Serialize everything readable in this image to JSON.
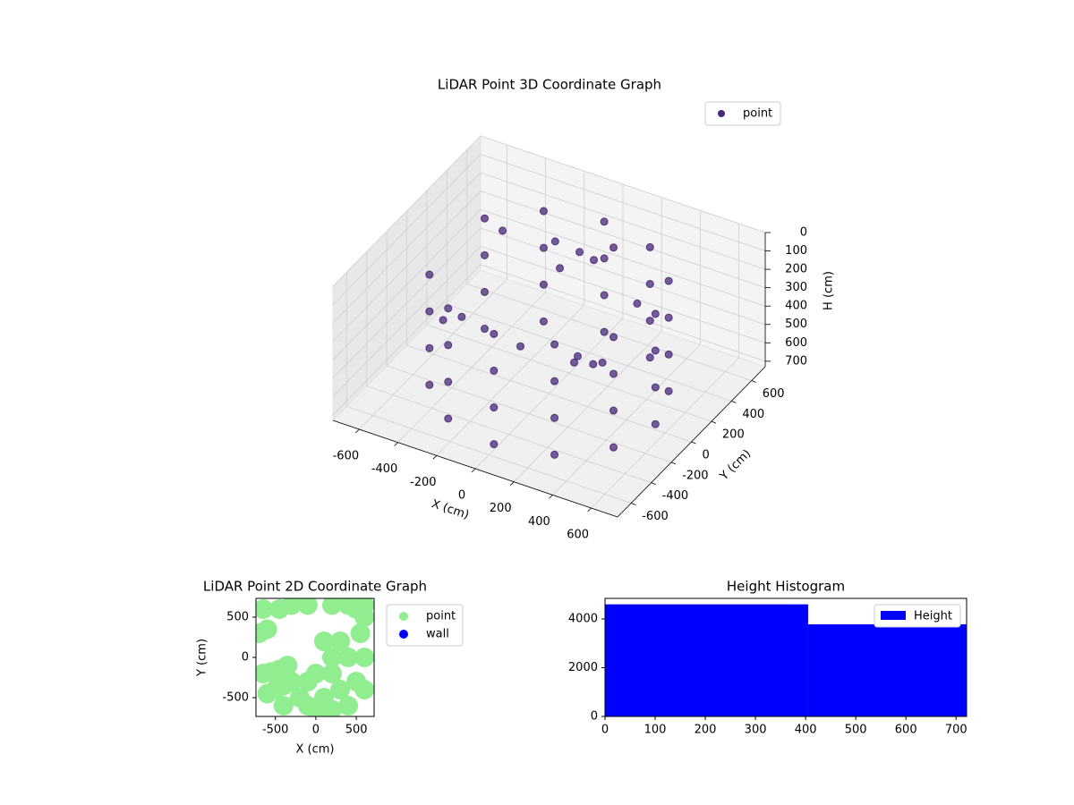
{
  "chart_data": [
    {
      "type": "scatter3d",
      "title": "LiDAR Point 3D Coordinate Graph",
      "xlabel": "X (cm)",
      "ylabel": "Y (cm)",
      "zlabel": "H (cm)",
      "xlim": [
        -736,
        736
      ],
      "ylim": [
        -736,
        736
      ],
      "zlim": [
        730,
        0
      ],
      "xticks": [
        -600,
        -400,
        -200,
        0,
        200,
        400,
        600
      ],
      "yticks": [
        -600,
        -400,
        -200,
        0,
        200,
        400,
        600
      ],
      "zticks": [
        0,
        100,
        200,
        300,
        400,
        500,
        600,
        700
      ],
      "grid": true,
      "legend": "upper right",
      "series": [
        {
          "name": "point",
          "color": "#482878",
          "x": [
            -476,
            -476,
            -476,
            -476,
            -275,
            -275,
            -275,
            -275,
            0,
            0,
            0,
            0,
            275,
            275,
            275,
            275,
            476,
            476,
            476,
            476,
            550,
            550,
            550,
            550,
            476,
            476,
            476,
            476,
            275,
            275,
            275,
            275,
            0,
            0,
            0,
            0,
            -275,
            -275,
            -275,
            -275,
            -476,
            -476,
            -476,
            -476,
            -150,
            -50,
            50,
            100,
            -100,
            200,
            250,
            150,
            0,
            -200,
            -500,
            -400,
            -600,
            300
          ],
          "y": [
            -275,
            -275,
            -275,
            -275,
            -476,
            -476,
            -476,
            -476,
            -550,
            -550,
            -550,
            -550,
            -476,
            -476,
            -476,
            -476,
            -275,
            -275,
            -275,
            -275,
            0,
            0,
            0,
            0,
            275,
            275,
            275,
            275,
            476,
            476,
            476,
            476,
            550,
            550,
            550,
            550,
            476,
            476,
            476,
            476,
            275,
            275,
            275,
            275,
            350,
            400,
            350,
            450,
            300,
            -100,
            50,
            150,
            250,
            100,
            500,
            -100,
            100,
            300
          ],
          "z": [
            100,
            300,
            500,
            700,
            100,
            300,
            500,
            700,
            100,
            300,
            500,
            700,
            100,
            300,
            500,
            700,
            100,
            300,
            500,
            700,
            100,
            300,
            500,
            700,
            100,
            300,
            500,
            700,
            100,
            300,
            500,
            700,
            100,
            300,
            500,
            700,
            100,
            300,
            500,
            700,
            100,
            300,
            500,
            700,
            150,
            200,
            180,
            150,
            250,
            400,
            500,
            600,
            700,
            600,
            300,
            400,
            600,
            300
          ]
        }
      ]
    },
    {
      "type": "scatter",
      "title": "LiDAR Point 2D Coordinate Graph",
      "xlabel": "X (cm)",
      "ylabel": "Y (cm)",
      "xlim": [
        -740,
        720
      ],
      "ylim": [
        -733,
        733
      ],
      "xticks": [
        -500,
        0,
        500
      ],
      "yticks": [
        -500,
        0,
        500
      ],
      "legend": "outside right",
      "series": [
        {
          "name": "point",
          "color": "#90ee90",
          "x": [
            -650,
            -600,
            -650,
            -550,
            -450,
            -350,
            -600,
            -500,
            -400,
            -300,
            -200,
            -100,
            -400,
            0,
            100,
            200,
            300,
            400,
            500,
            600,
            600,
            550,
            600,
            500,
            400,
            200,
            -100,
            -300,
            -450,
            100,
            200,
            300,
            400,
            0,
            -100,
            200,
            600,
            -700
          ],
          "y": [
            600,
            350,
            -200,
            -180,
            -150,
            -100,
            -450,
            -400,
            -350,
            -300,
            -500,
            -600,
            -600,
            -650,
            -500,
            -650,
            -400,
            -600,
            -300,
            -400,
            0,
            300,
            500,
            600,
            650,
            650,
            650,
            650,
            600,
            200,
            0,
            200,
            0,
            -200,
            -300,
            -200,
            650,
            300
          ]
        },
        {
          "name": "wall",
          "color": "#0000ff",
          "x": [],
          "y": []
        }
      ]
    },
    {
      "type": "histogram",
      "title": "Height Histogram",
      "bins": [
        0,
        405,
        721
      ],
      "counts": [
        4600,
        3780
      ],
      "xlim": [
        0,
        721
      ],
      "ylim": [
        0,
        4844
      ],
      "xticks": [
        0,
        100,
        200,
        300,
        400,
        500,
        600,
        700
      ],
      "yticks": [
        0,
        2000,
        4000
      ],
      "series_name": "Height",
      "color": "#0000ff",
      "legend": "upper right"
    }
  ]
}
